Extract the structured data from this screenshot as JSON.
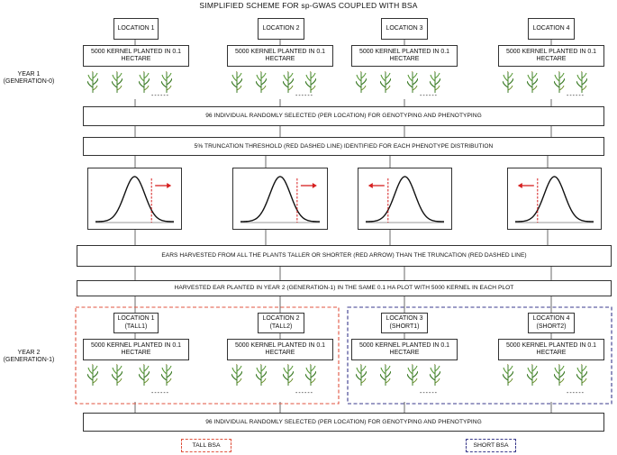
{
  "title": "SIMPLIFIED SCHEME FOR sp-GWAS COUPLED WITH BSA",
  "year1_label": "YEAR 1\n(GENERATION-0)",
  "year2_label": "YEAR 2\n(GENERATION-1)",
  "year1_locations": [
    "LOCATION 1",
    "LOCATION 2",
    "LOCATION 3",
    "LOCATION 4"
  ],
  "year2_locations": [
    "LOCATION 1\n(TALL1)",
    "LOCATION 2\n(TALL2)",
    "LOCATION 3\n(SHORT1)",
    "LOCATION 4\n(SHORT2)"
  ],
  "kernel_text": "5000 KERNEL PLANTED IN 0.1\nHECTARE",
  "dots": "------",
  "steps": {
    "select1": "96 INDIVIDUAL RANDOMLY SELECTED  (PER LOCATION) FOR GENOTYPING AND PHENOTYPING",
    "truncation": "5% TRUNCATION THRESHOLD (RED DASHED LINE)  IDENTIFIED FOR EACH PHENOTYPE DISTRIBUTION",
    "ears": "EARS HARVESTED FROM ALL THE PLANTS TALLER OR SHORTER (RED ARROW) THAN THE TRUNCATION (RED DASHED LINE)",
    "harvested": "HARVESTED EAR PLANTED IN YEAR 2 (GENERATION-1) IN THE SAME 0.1 HA  PLOT WITH 5000 KERNEL IN EACH PLOT",
    "select2": "96 INDIVIDUAL RANDOMLY SELECTED  (PER LOCATION) FOR GENOTYPING AND PHENOTYPING"
  },
  "distributions": [
    {
      "direction": "right"
    },
    {
      "direction": "right"
    },
    {
      "direction": "left"
    },
    {
      "direction": "left"
    }
  ],
  "legend": {
    "tall": "TALL BSA",
    "short": "SHORT BSA"
  },
  "colors": {
    "tall": "#e0533f",
    "short": "#3a3a8c",
    "threshold": "#d62020",
    "plant": "#3f7d2a"
  }
}
